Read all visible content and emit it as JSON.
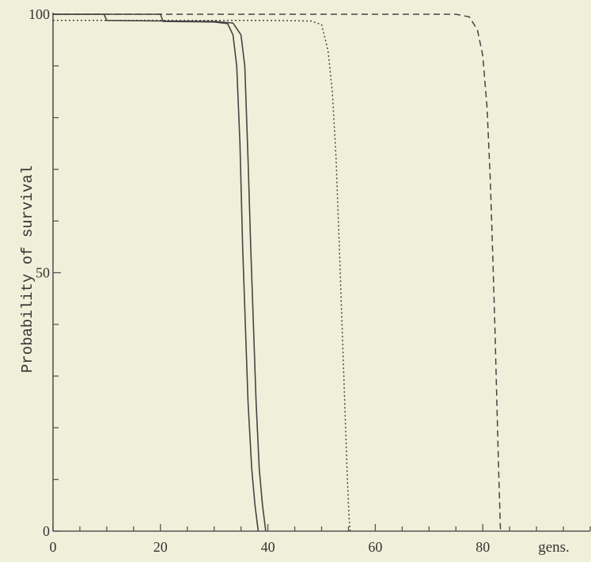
{
  "chart_data": {
    "type": "line",
    "title": "",
    "xlabel": "gens.",
    "ylabel": "Probability of survival",
    "xlim": [
      0,
      100
    ],
    "ylim": [
      0,
      100
    ],
    "x_ticks": [
      0,
      20,
      40,
      60,
      80
    ],
    "y_ticks": [
      0,
      50,
      100
    ],
    "grid": false,
    "series": [
      {
        "style": "solid",
        "points": [
          [
            0,
            100
          ],
          [
            10,
            100
          ],
          [
            20,
            100
          ],
          [
            20.5,
            98.6
          ],
          [
            30,
            98.5
          ],
          [
            32.5,
            98.2
          ],
          [
            33.5,
            96
          ],
          [
            34.2,
            90
          ],
          [
            34.8,
            75
          ],
          [
            35.3,
            55
          ],
          [
            35.8,
            40
          ],
          [
            36.3,
            25
          ],
          [
            37,
            12
          ],
          [
            37.6,
            5
          ],
          [
            38.2,
            0
          ]
        ]
      },
      {
        "style": "solid",
        "points": [
          [
            0,
            100
          ],
          [
            9.5,
            100
          ],
          [
            10,
            98.8
          ],
          [
            20,
            98.7
          ],
          [
            30,
            98.6
          ],
          [
            33.5,
            98.3
          ],
          [
            35,
            96
          ],
          [
            35.7,
            90
          ],
          [
            36.3,
            72
          ],
          [
            36.8,
            55
          ],
          [
            37.3,
            40
          ],
          [
            37.8,
            25
          ],
          [
            38.4,
            12
          ],
          [
            39,
            5
          ],
          [
            39.6,
            0
          ]
        ]
      },
      {
        "style": "dotted",
        "points": [
          [
            0,
            98.8
          ],
          [
            20,
            98.8
          ],
          [
            40,
            98.8
          ],
          [
            48,
            98.7
          ],
          [
            50,
            98
          ],
          [
            51.2,
            93
          ],
          [
            52,
            85
          ],
          [
            52.7,
            72
          ],
          [
            53.3,
            55
          ],
          [
            53.8,
            40
          ],
          [
            54.3,
            25
          ],
          [
            54.8,
            10
          ],
          [
            55.1,
            3
          ],
          [
            55.3,
            0
          ]
        ]
      },
      {
        "style": "dashed",
        "points": [
          [
            0,
            100
          ],
          [
            20,
            100
          ],
          [
            40,
            100
          ],
          [
            60,
            100
          ],
          [
            75,
            100
          ],
          [
            77.5,
            99.5
          ],
          [
            79,
            97
          ],
          [
            80,
            92
          ],
          [
            80.8,
            82
          ],
          [
            81.4,
            68
          ],
          [
            81.9,
            52
          ],
          [
            82.3,
            38
          ],
          [
            82.7,
            22
          ],
          [
            83,
            10
          ],
          [
            83.3,
            0
          ]
        ]
      }
    ]
  }
}
